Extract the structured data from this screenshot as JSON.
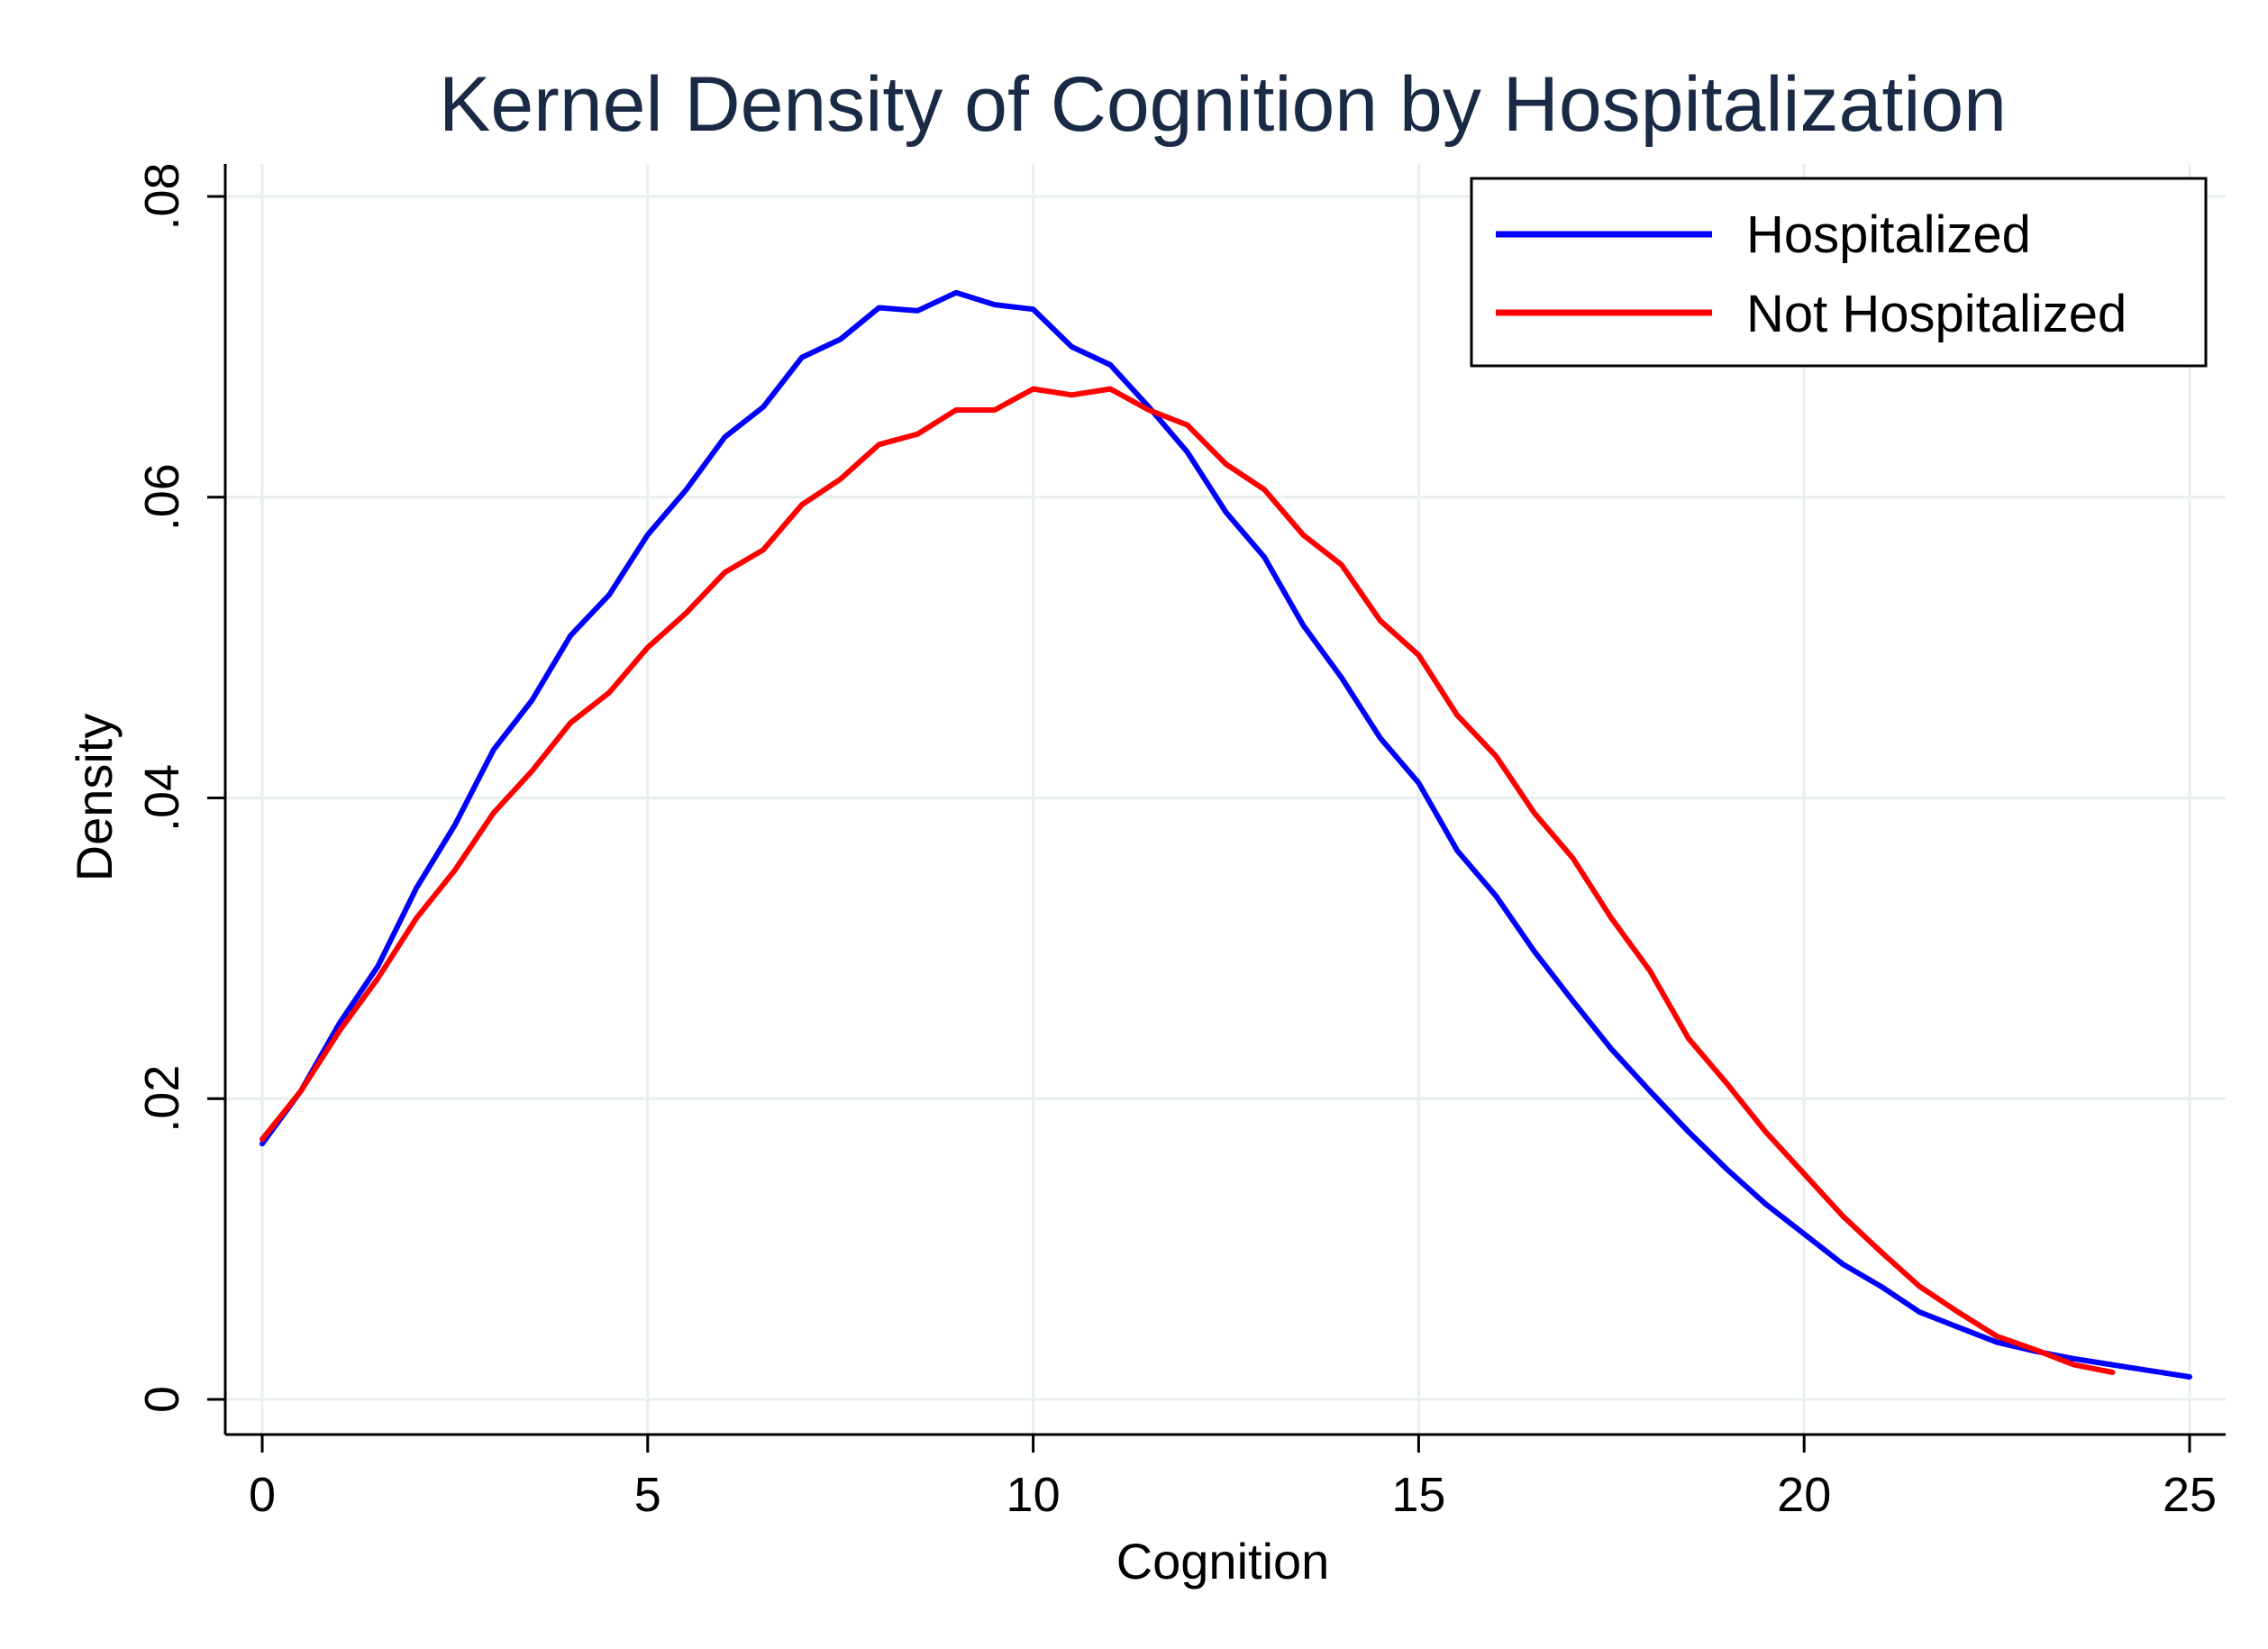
{
  "chart_data": {
    "type": "line",
    "title": "Kernel Density of Cognition by Hospitalization",
    "xlabel": "Cognition",
    "ylabel": "Density",
    "xlim": [
      0,
      25
    ],
    "ylim": [
      0,
      0.08
    ],
    "x_ticks": [
      0,
      5,
      10,
      15,
      20,
      25
    ],
    "x_tick_labels": [
      "0",
      "5",
      "10",
      "15",
      "20",
      "25"
    ],
    "y_ticks": [
      0,
      0.02,
      0.04,
      0.06,
      0.08
    ],
    "y_tick_labels": [
      "0",
      ".02",
      ".04",
      ".06",
      ".08"
    ],
    "grid": true,
    "legend_position": "top-right",
    "series": [
      {
        "name": "Hospitalized",
        "color": "#0000ff",
        "x": [
          0,
          0.5,
          1,
          1.5,
          2,
          2.5,
          3,
          3.5,
          4,
          4.5,
          5,
          5.5,
          6,
          6.5,
          7,
          7.5,
          8,
          8.5,
          9,
          9.5,
          10,
          10.5,
          11,
          11.5,
          12,
          12.5,
          13,
          13.5,
          14,
          14.5,
          15,
          15.5,
          16,
          16.5,
          17,
          17.5,
          18,
          18.5,
          19,
          19.5,
          20,
          20.5,
          21,
          21.5,
          22,
          22.5,
          23,
          23.5,
          24,
          24.5,
          25
        ],
        "values": [
          0.017,
          0.0205,
          0.025,
          0.0288,
          0.034,
          0.0382,
          0.0432,
          0.0465,
          0.0508,
          0.0535,
          0.0575,
          0.0605,
          0.064,
          0.066,
          0.0693,
          0.0705,
          0.0726,
          0.0724,
          0.0736,
          0.0728,
          0.0725,
          0.07,
          0.0688,
          0.066,
          0.063,
          0.059,
          0.056,
          0.0515,
          0.048,
          0.044,
          0.041,
          0.0365,
          0.0335,
          0.0298,
          0.0265,
          0.0233,
          0.0205,
          0.0178,
          0.0153,
          0.013,
          0.011,
          0.009,
          0.0075,
          0.0058,
          0.0048,
          0.0038,
          0.0032,
          0.0027,
          0.0023,
          0.0019,
          0.0015
        ]
      },
      {
        "name": "Not Hospitalized",
        "color": "#ff0000",
        "x": [
          0,
          0.5,
          1,
          1.5,
          2,
          2.5,
          3,
          3.5,
          4,
          4.5,
          5,
          5.5,
          6,
          6.5,
          7,
          7.5,
          8,
          8.5,
          9,
          9.5,
          10,
          10.5,
          11,
          11.5,
          12,
          12.5,
          13,
          13.5,
          14,
          14.5,
          15,
          15.5,
          16,
          16.5,
          17,
          17.5,
          18,
          18.5,
          19,
          19.5,
          20,
          20.5,
          21,
          21.5,
          22,
          22.5,
          23,
          23.5,
          24
        ],
        "values": [
          0.0173,
          0.0205,
          0.0245,
          0.028,
          0.032,
          0.0352,
          0.039,
          0.0418,
          0.045,
          0.047,
          0.05,
          0.0523,
          0.055,
          0.0565,
          0.0595,
          0.0612,
          0.0635,
          0.0642,
          0.0658,
          0.0658,
          0.0672,
          0.0668,
          0.0672,
          0.0658,
          0.0648,
          0.0622,
          0.0605,
          0.0575,
          0.0555,
          0.0518,
          0.0495,
          0.0455,
          0.0428,
          0.039,
          0.036,
          0.032,
          0.0285,
          0.024,
          0.021,
          0.0178,
          0.015,
          0.0122,
          0.0098,
          0.0075,
          0.0058,
          0.0042,
          0.0033,
          0.0023,
          0.0018
        ]
      }
    ]
  }
}
